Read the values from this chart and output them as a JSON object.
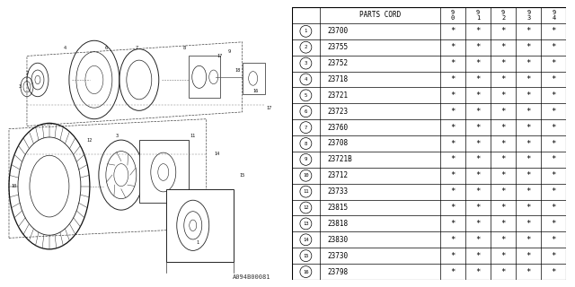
{
  "parts": [
    {
      "num": "1",
      "code": "23700"
    },
    {
      "num": "2",
      "code": "23755"
    },
    {
      "num": "3",
      "code": "23752"
    },
    {
      "num": "4",
      "code": "23718"
    },
    {
      "num": "5",
      "code": "23721"
    },
    {
      "num": "6",
      "code": "23723"
    },
    {
      "num": "7",
      "code": "23760"
    },
    {
      "num": "8",
      "code": "23708"
    },
    {
      "num": "9",
      "code": "23721B"
    },
    {
      "num": "10",
      "code": "23712"
    },
    {
      "num": "11",
      "code": "23733"
    },
    {
      "num": "12",
      "code": "23815"
    },
    {
      "num": "13",
      "code": "23818"
    },
    {
      "num": "14",
      "code": "23830"
    },
    {
      "num": "15",
      "code": "23730"
    },
    {
      "num": "16",
      "code": "23798"
    }
  ],
  "years": [
    "90",
    "91",
    "92",
    "93",
    "94"
  ],
  "header": "PARTS CORD",
  "watermark": "A094B00081",
  "bg_color": "#ffffff"
}
